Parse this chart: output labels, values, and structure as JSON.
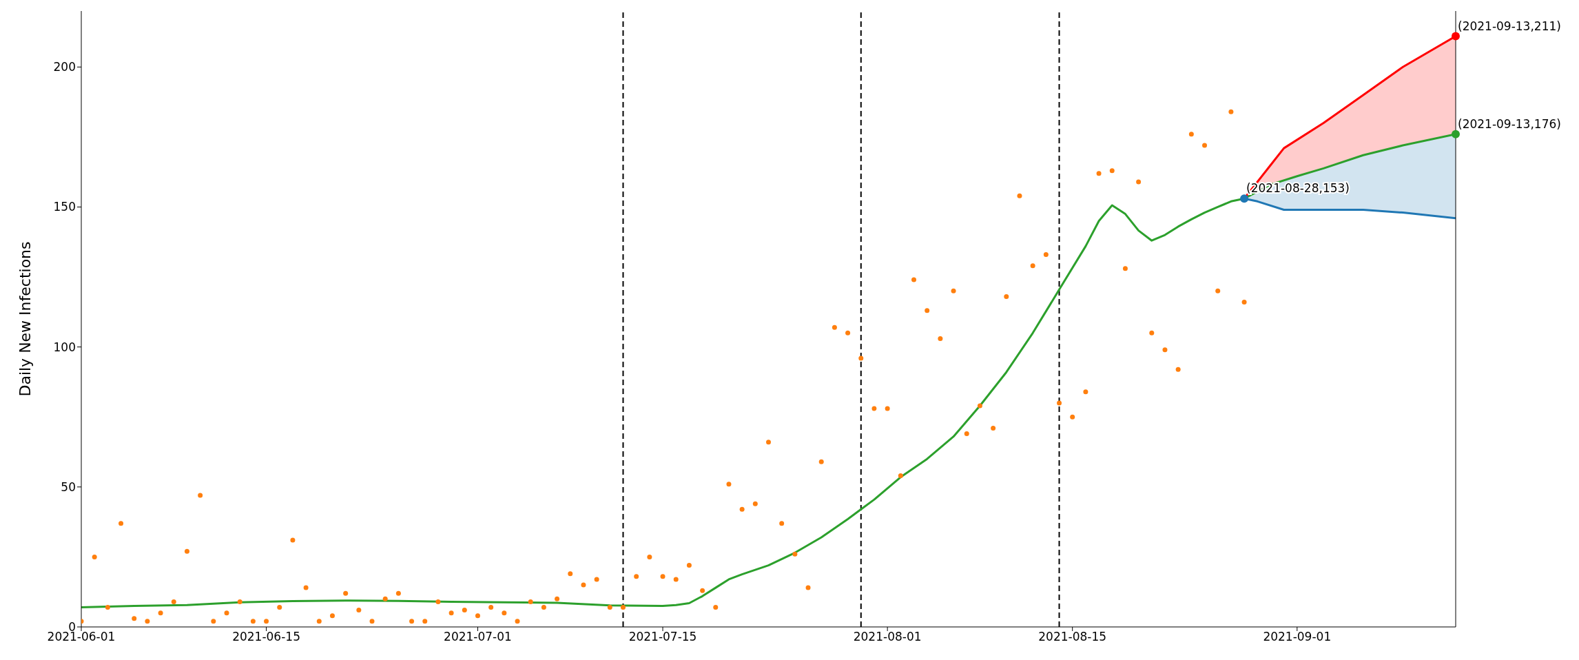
{
  "chart_data": {
    "type": "line",
    "ylabel": "Daily New Infections",
    "xlim": [
      "2021-06-01",
      "2021-09-13"
    ],
    "xticks": [
      "2021-06-01",
      "2021-06-15",
      "2021-07-01",
      "2021-07-15",
      "2021-08-01",
      "2021-08-15",
      "2021-09-01"
    ],
    "ylim": [
      0,
      220
    ],
    "yticks": [
      0,
      50,
      100,
      150,
      200
    ],
    "grid": false,
    "legend": false,
    "series": [
      {
        "type": "scatter",
        "marker": "circle",
        "color": "#ff7f0e",
        "x": [
          "2021-06-01",
          "2021-06-02",
          "2021-06-03",
          "2021-06-04",
          "2021-06-05",
          "2021-06-06",
          "2021-06-07",
          "2021-06-08",
          "2021-06-09",
          "2021-06-10",
          "2021-06-11",
          "2021-06-12",
          "2021-06-13",
          "2021-06-14",
          "2021-06-15",
          "2021-06-16",
          "2021-06-17",
          "2021-06-18",
          "2021-06-19",
          "2021-06-20",
          "2021-06-21",
          "2021-06-22",
          "2021-06-23",
          "2021-06-24",
          "2021-06-25",
          "2021-06-26",
          "2021-06-27",
          "2021-06-28",
          "2021-06-29",
          "2021-06-30",
          "2021-07-01",
          "2021-07-02",
          "2021-07-03",
          "2021-07-04",
          "2021-07-05",
          "2021-07-06",
          "2021-07-07",
          "2021-07-08",
          "2021-07-09",
          "2021-07-10",
          "2021-07-11",
          "2021-07-12",
          "2021-07-13",
          "2021-07-14",
          "2021-07-15",
          "2021-07-16",
          "2021-07-17",
          "2021-07-18",
          "2021-07-19",
          "2021-07-20",
          "2021-07-21",
          "2021-07-22",
          "2021-07-23",
          "2021-07-24",
          "2021-07-25",
          "2021-07-26",
          "2021-07-27",
          "2021-07-28",
          "2021-07-29",
          "2021-07-30",
          "2021-07-31",
          "2021-08-01",
          "2021-08-02",
          "2021-08-03",
          "2021-08-04",
          "2021-08-05",
          "2021-08-06",
          "2021-08-07",
          "2021-08-08",
          "2021-08-09",
          "2021-08-10",
          "2021-08-11",
          "2021-08-12",
          "2021-08-13",
          "2021-08-14",
          "2021-08-15",
          "2021-08-16",
          "2021-08-17",
          "2021-08-18",
          "2021-08-19",
          "2021-08-20",
          "2021-08-21",
          "2021-08-22",
          "2021-08-23",
          "2021-08-24",
          "2021-08-25",
          "2021-08-26",
          "2021-08-27",
          "2021-08-28"
        ],
        "values": [
          2,
          25,
          7,
          37,
          3,
          2,
          5,
          9,
          27,
          47,
          2,
          5,
          9,
          2,
          2,
          7,
          31,
          14,
          2,
          4,
          12,
          6,
          2,
          10,
          12,
          2,
          2,
          9,
          5,
          6,
          4,
          7,
          5,
          2,
          9,
          7,
          10,
          19,
          15,
          17,
          7,
          7,
          18,
          25,
          18,
          17,
          22,
          13,
          7,
          51,
          42,
          44,
          66,
          37,
          26,
          14,
          59,
          107,
          105,
          96,
          78,
          78,
          54,
          124,
          113,
          103,
          120,
          69,
          79,
          71,
          118,
          154,
          129,
          133,
          80,
          75,
          84,
          162,
          163,
          128,
          159,
          105,
          99,
          92,
          176,
          172,
          120,
          184,
          116
        ]
      },
      {
        "marker": "none",
        "color": "#2ca02c",
        "x": [
          "2021-06-01",
          "2021-06-05",
          "2021-06-09",
          "2021-06-13",
          "2021-06-17",
          "2021-06-21",
          "2021-06-25",
          "2021-06-29",
          "2021-07-03",
          "2021-07-07",
          "2021-07-11",
          "2021-07-15",
          "2021-07-16",
          "2021-07-17",
          "2021-07-18",
          "2021-07-19",
          "2021-07-20",
          "2021-07-21",
          "2021-07-23",
          "2021-07-25",
          "2021-07-27",
          "2021-07-29",
          "2021-07-30",
          "2021-07-31",
          "2021-08-02",
          "2021-08-04",
          "2021-08-06",
          "2021-08-08",
          "2021-08-10",
          "2021-08-12",
          "2021-08-14",
          "2021-08-16",
          "2021-08-17",
          "2021-08-18",
          "2021-08-19",
          "2021-08-20",
          "2021-08-21",
          "2021-08-22",
          "2021-08-23",
          "2021-08-24",
          "2021-08-25",
          "2021-08-26",
          "2021-08-27",
          "2021-08-28",
          "2021-08-30",
          "2021-09-01",
          "2021-09-03",
          "2021-09-06",
          "2021-09-09",
          "2021-09-13"
        ],
        "values": [
          7,
          7.5,
          7.8,
          8.8,
          9.2,
          9.4,
          9.3,
          9,
          8.8,
          8.6,
          7.7,
          7.5,
          7.8,
          8.5,
          11,
          14,
          17,
          18.8,
          22,
          26.5,
          32,
          38.5,
          42,
          45.5,
          53.5,
          60,
          68,
          79,
          91,
          105,
          120.5,
          136,
          145,
          150.6,
          147.5,
          141.6,
          138,
          140,
          143,
          145.6,
          148,
          150,
          152,
          153,
          158,
          161,
          163.8,
          168.5,
          172,
          176
        ]
      },
      {
        "marker": "none",
        "color": "#ff0000",
        "x": [
          "2021-08-28",
          "2021-08-30",
          "2021-08-31",
          "2021-09-03",
          "2021-09-06",
          "2021-09-09",
          "2021-09-13"
        ],
        "values": [
          153,
          165,
          171,
          180,
          190,
          200,
          211
        ],
        "lower": [
          153,
          158,
          159.5,
          163.8,
          168.5,
          172,
          176
        ],
        "upper": [
          153,
          165,
          171,
          180,
          190,
          200,
          211
        ]
      },
      {
        "marker": "none",
        "color": "#1f77b4",
        "x": [
          "2021-08-28",
          "2021-08-29",
          "2021-08-31",
          "2021-09-03",
          "2021-09-06",
          "2021-09-09",
          "2021-09-13"
        ],
        "values": [
          153,
          152,
          149,
          149,
          149,
          148,
          146
        ],
        "lower": [
          153,
          152,
          149,
          149,
          149,
          148,
          146
        ],
        "upper": [
          153,
          155,
          159.5,
          163.8,
          168.5,
          172,
          176
        ]
      }
    ],
    "ref_lines": [
      {
        "axis": "x",
        "value": "2021-07-12",
        "color": "#000000",
        "line_style": "dashed"
      },
      {
        "axis": "x",
        "value": "2021-07-30",
        "color": "#000000",
        "line_style": "dashed"
      },
      {
        "axis": "x",
        "value": "2021-08-14",
        "color": "#000000",
        "line_style": "dashed"
      }
    ],
    "annotations": [
      {
        "text": "(2021-08-28,153)",
        "x": "2021-08-28",
        "y": 153
      },
      {
        "text": "(2021-09-13,211)",
        "x": "2021-09-13",
        "y": 211
      },
      {
        "text": "(2021-09-13,176)",
        "x": "2021-09-13",
        "y": 176
      }
    ]
  }
}
